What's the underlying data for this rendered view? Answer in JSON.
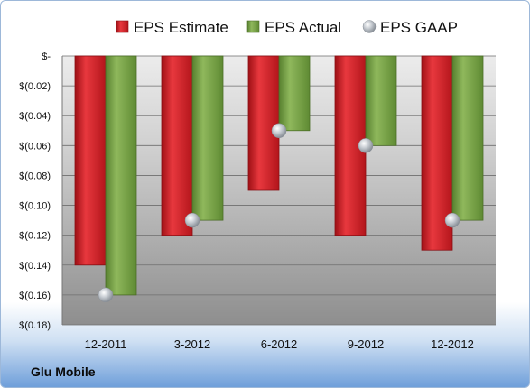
{
  "chart_data": {
    "type": "bar",
    "categories": [
      "12-2011",
      "3-2012",
      "6-2012",
      "9-2012",
      "12-2012"
    ],
    "series": [
      {
        "name": "EPS Estimate",
        "values": [
          -0.14,
          -0.12,
          -0.09,
          -0.12,
          -0.13
        ],
        "color": "#d9262c"
      },
      {
        "name": "EPS Actual",
        "values": [
          -0.16,
          -0.11,
          -0.05,
          -0.06,
          -0.11
        ],
        "color": "#79a348"
      },
      {
        "name": "EPS GAAP",
        "type": "scatter",
        "values": [
          -0.16,
          -0.11,
          -0.05,
          -0.06,
          -0.11
        ],
        "color": "#b8c0c8"
      }
    ],
    "ylim": [
      -0.18,
      0
    ],
    "y_ticks": [
      0,
      -0.02,
      -0.04,
      -0.06,
      -0.08,
      -0.1,
      -0.12,
      -0.14,
      -0.16,
      -0.18
    ],
    "y_tick_labels": [
      "$-",
      "$(0.02)",
      "$(0.04)",
      "$(0.06)",
      "$(0.08)",
      "$(0.10)",
      "$(0.12)",
      "$(0.14)",
      "$(0.16)",
      "$(0.18)"
    ],
    "legend_position": "top",
    "grid": true,
    "footer": "Glu Mobile"
  }
}
